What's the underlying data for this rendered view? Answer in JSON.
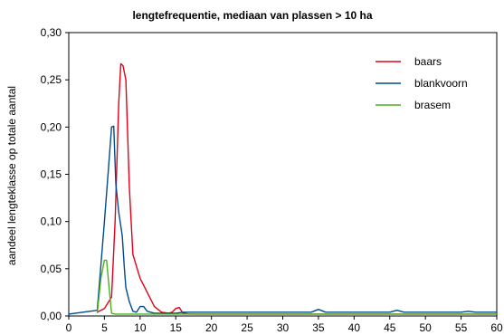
{
  "chart_data": {
    "type": "line",
    "title": "lengtefrequentie, mediaan van plassen > 10 ha",
    "xlabel": "",
    "ylabel": "aandeel lengteklasse op totale aantal",
    "xlim": [
      0,
      60
    ],
    "ylim": [
      0,
      0.3
    ],
    "x_ticks": [
      0,
      5,
      10,
      15,
      20,
      25,
      30,
      35,
      40,
      45,
      50,
      55,
      60
    ],
    "x_tick_labels": [
      "0",
      "5",
      "10",
      "15",
      "20",
      "25",
      "30",
      "35",
      "40",
      "45",
      "50",
      "55",
      "60"
    ],
    "y_ticks": [
      0,
      0.05,
      0.1,
      0.15,
      0.2,
      0.25,
      0.3
    ],
    "y_tick_labels": [
      "0,00",
      "0,05",
      "0,10",
      "0,15",
      "0,20",
      "0,25",
      "0,30"
    ],
    "grid": false,
    "legend_position": "top-right",
    "series": [
      {
        "name": "baars",
        "color": "#e2001a",
        "x": [
          4,
          5,
          6,
          6.5,
          7,
          7.3,
          7.6,
          8,
          8.5,
          9,
          10,
          11,
          12,
          13,
          14,
          14.5,
          15,
          15.5,
          16,
          17,
          20,
          30,
          40,
          50,
          60
        ],
        "y": [
          0.004,
          0.008,
          0.02,
          0.1,
          0.225,
          0.267,
          0.265,
          0.25,
          0.135,
          0.065,
          0.04,
          0.025,
          0.01,
          0.004,
          0.003,
          0.004,
          0.008,
          0.009,
          0.003,
          0.002,
          0.002,
          0.002,
          0.002,
          0.002,
          0.002
        ]
      },
      {
        "name": "blankvoorn",
        "color": "#004a8f",
        "x": [
          0,
          2,
          4,
          5,
          5.5,
          6,
          6.3,
          6.6,
          7,
          7.5,
          7.8,
          8,
          8.5,
          9,
          9.5,
          10,
          10.5,
          11,
          12,
          13,
          14,
          15,
          16,
          20,
          25,
          30,
          34,
          35,
          36,
          40,
          45,
          46,
          47,
          50,
          55,
          56,
          57,
          60
        ],
        "y": [
          0.002,
          0.004,
          0.006,
          0.1,
          0.15,
          0.2,
          0.201,
          0.14,
          0.11,
          0.085,
          0.05,
          0.03,
          0.015,
          0.005,
          0.004,
          0.01,
          0.01,
          0.005,
          0.003,
          0.003,
          0.003,
          0.003,
          0.004,
          0.004,
          0.004,
          0.004,
          0.004,
          0.007,
          0.004,
          0.004,
          0.004,
          0.006,
          0.004,
          0.004,
          0.004,
          0.005,
          0.004,
          0.004
        ]
      },
      {
        "name": "brasem",
        "color": "#4caf22",
        "x": [
          4,
          4.5,
          5,
          5.3,
          5.6,
          6,
          6.5,
          7,
          8,
          10,
          15,
          20,
          30,
          40,
          50,
          60
        ],
        "y": [
          0.003,
          0.04,
          0.059,
          0.059,
          0.035,
          0.003,
          0.002,
          0.002,
          0.002,
          0.002,
          0.002,
          0.002,
          0.002,
          0.002,
          0.002,
          0.002
        ]
      }
    ]
  }
}
